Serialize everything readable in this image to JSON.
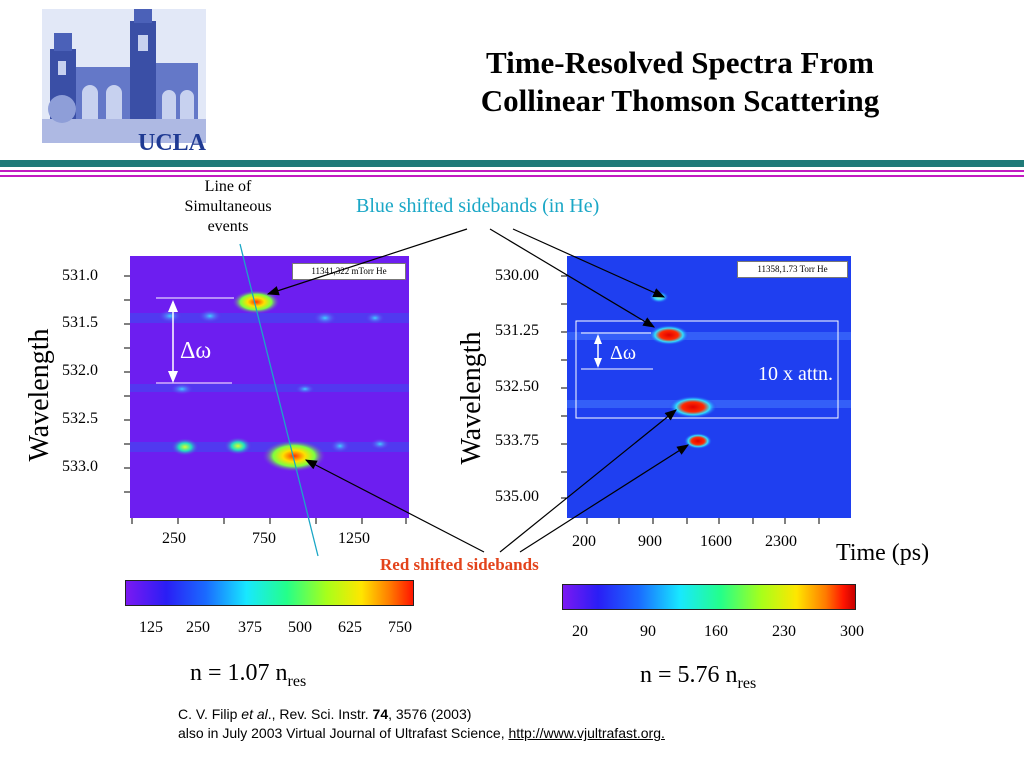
{
  "header": {
    "logo_text": "UCLA",
    "title_line1": "Time-Resolved Spectra From",
    "title_line2": "Collinear Thomson Scattering"
  },
  "annotations": {
    "line_of_events": [
      "Line of",
      "Simultaneous",
      "events"
    ],
    "blue_shifted": "Blue shifted sidebands (in He)",
    "red_shifted": "Red shifted sidebands",
    "delta_omega": "Δω",
    "attenuation": "10 x attn.",
    "time_label": "Time (ps)"
  },
  "colors": {
    "blue_annotation": "#1aa7c6",
    "red_annotation": "#e3431b",
    "header_teal": "#1f7a78",
    "header_magenta": "#c21ac2"
  },
  "chart_data": [
    {
      "type": "heatmap",
      "tag": "11341,322 mTorr He",
      "ylabel": "Wavelength",
      "xlabel": "",
      "yticks": [
        "531.0",
        "531.5",
        "532.0",
        "532.5",
        "533.0"
      ],
      "xticks": [
        "250",
        "750",
        "1250"
      ],
      "colorbar_ticks": [
        "125",
        "250",
        "375",
        "500",
        "625",
        "750"
      ],
      "caption": {
        "main": "n = 1.07 n",
        "sub": "res"
      }
    },
    {
      "type": "heatmap",
      "tag": "11358,1.73 Torr He",
      "ylabel": "Wavelength",
      "xlabel": "Time (ps)",
      "yticks": [
        "530.00",
        "531.25",
        "532.50",
        "533.75",
        "535.00"
      ],
      "xticks": [
        "200",
        "900",
        "1600",
        "2300"
      ],
      "colorbar_ticks": [
        "20",
        "90",
        "160",
        "230",
        "300"
      ],
      "caption": {
        "main": "n = 5.76 n",
        "sub": "res"
      }
    }
  ],
  "citation": {
    "author": "C. V. Filip ",
    "etal": "et al",
    "journal": "., Rev. Sci. Instr. ",
    "volume": "74",
    "pages": ", 3576 (2003)",
    "line2": "also in July 2003 Virtual Journal of Ultrafast Science, ",
    "url": "http://www.vjultrafast.org."
  }
}
